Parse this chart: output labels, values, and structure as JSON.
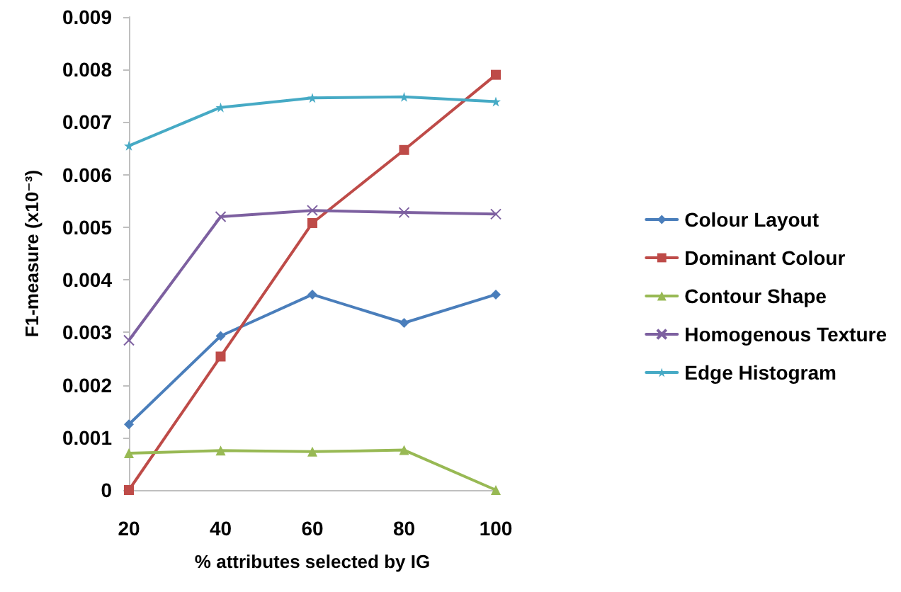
{
  "chart_data": {
    "type": "line",
    "xlabel": "% attributes selected by IG",
    "ylabel": "F1-measure (x10⁻³)",
    "categories": [
      "20",
      "40",
      "60",
      "80",
      "100"
    ],
    "series": [
      {
        "name": "Colour Layout",
        "color": "#4a7ebb",
        "marker": "diamond",
        "values": [
          0.00125,
          0.00293,
          0.00372,
          0.00318,
          0.00372
        ]
      },
      {
        "name": "Dominant Colour",
        "color": "#be4b48",
        "marker": "square",
        "values": [
          0,
          0.00254,
          0.00508,
          0.00647,
          0.0079
        ]
      },
      {
        "name": "Contour Shape",
        "color": "#98b954",
        "marker": "triangle",
        "values": [
          0.0007,
          0.00075,
          0.00073,
          0.00076,
          0
        ]
      },
      {
        "name": "Homogenous Texture",
        "color": "#7d60a0",
        "marker": "cross",
        "values": [
          0.00285,
          0.0052,
          0.00532,
          0.00528,
          0.00525
        ]
      },
      {
        "name": "Edge Histogram",
        "color": "#46aac5",
        "marker": "star",
        "values": [
          0.00655,
          0.00728,
          0.00746,
          0.00748,
          0.00739
        ]
      }
    ],
    "ylim": [
      0,
      0.009
    ],
    "yticks": [
      0,
      0.001,
      0.002,
      0.003,
      0.004,
      0.005,
      0.006,
      0.007,
      0.008,
      0.009
    ],
    "grid": false,
    "legend": "right",
    "line_style": "solid"
  }
}
